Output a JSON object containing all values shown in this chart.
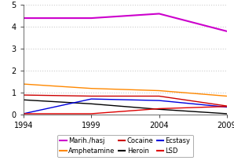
{
  "years": [
    1994,
    1999,
    2004,
    2009
  ],
  "series": [
    {
      "name": "Marih./hasj",
      "values": [
        4.4,
        4.4,
        4.6,
        3.8
      ],
      "color": "#cc00cc",
      "lw": 1.5
    },
    {
      "name": "Amphetamine",
      "values": [
        1.4,
        1.2,
        1.1,
        0.85
      ],
      "color": "#ff8800",
      "lw": 1.0
    },
    {
      "name": "Cocaine",
      "values": [
        0.9,
        0.85,
        0.85,
        0.4
      ],
      "color": "#cc0000",
      "lw": 1.0
    },
    {
      "name": "Heroin",
      "values": [
        0.68,
        0.5,
        0.25,
        0.05
      ],
      "color": "#000000",
      "lw": 1.0
    },
    {
      "name": "Ecstasy",
      "values": [
        0.05,
        0.72,
        0.65,
        0.35
      ],
      "color": "#0000dd",
      "lw": 1.0
    },
    {
      "name": "LSD",
      "values": [
        0.05,
        0.05,
        0.28,
        0.38
      ],
      "color": "#dd0000",
      "lw": 1.0
    }
  ],
  "xlim": [
    1994,
    2009
  ],
  "ylim": [
    0,
    5
  ],
  "yticks": [
    0,
    1,
    2,
    3,
    4,
    5
  ],
  "xticks": [
    1994,
    1999,
    2004,
    2009
  ],
  "grid_color": "#cccccc",
  "bg_color": "#ffffff",
  "legend_ncol": 3,
  "legend_fontsize": 6.0
}
